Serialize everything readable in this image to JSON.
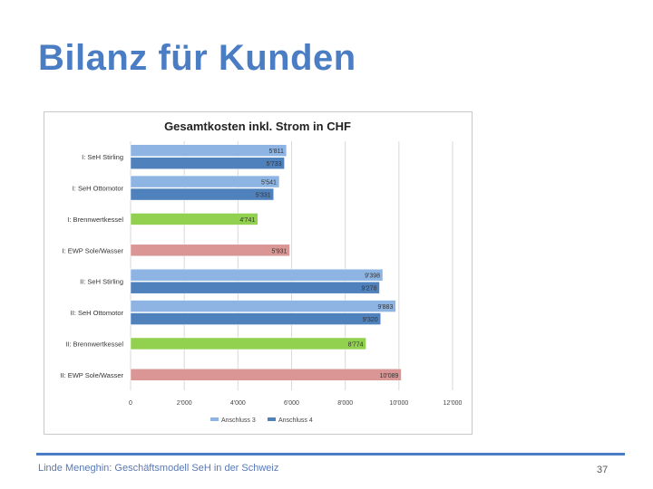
{
  "slide": {
    "title": "Bilanz für Kunden",
    "footer": "Linde Meneghin: Geschäftsmodell SeH in der Schweiz",
    "page_number": "37"
  },
  "colors": {
    "title": "#4a7dc3",
    "anschluss3": "#8eb4e3",
    "anschluss4": "#4f81bd",
    "brennwert": "#92d050",
    "ewp": "#d99694",
    "grid": "#d9d9d9"
  },
  "chart_data": {
    "type": "bar",
    "orientation": "horizontal",
    "title": "Gesamtkosten inkl. Strom in CHF",
    "xlim": [
      0,
      12000
    ],
    "ticks": [
      0,
      2000,
      4000,
      6000,
      8000,
      10000,
      12000
    ],
    "tick_labels": [
      "0",
      "2'000",
      "4'000",
      "6'000",
      "8'000",
      "10'000",
      "12'000"
    ],
    "grid": true,
    "legend_position": "bottom",
    "legend": [
      {
        "name": "Anschluss 3",
        "color": "#8eb4e3"
      },
      {
        "name": "Anschluss 4",
        "color": "#4f81bd"
      }
    ],
    "categories": [
      "I: SeH Stirling",
      "I: SeH Ottomotor",
      "I: Brennwertkessel",
      "I: EWP Sole/Wasser",
      "II: SeH Stirling",
      "II: SeH Ottomotor",
      "II: Brennwertkessel",
      "II: EWP Sole/Wasser"
    ],
    "bars": [
      {
        "category": 0,
        "series": "Anschluss 3",
        "value": 5811,
        "label": "5'811",
        "color": "#8eb4e3",
        "border": "#ffffff"
      },
      {
        "category": 0,
        "series": "Anschluss 4",
        "value": 5733,
        "label": "5'733",
        "color": "#4f81bd",
        "border": "#ffffff"
      },
      {
        "category": 1,
        "series": "Anschluss 3",
        "value": 5541,
        "label": "5'541",
        "color": "#8eb4e3",
        "border": "#ffffff"
      },
      {
        "category": 1,
        "series": "Anschluss 4",
        "value": 5331,
        "label": "5'331",
        "color": "#4f81bd",
        "border": "#ffffff"
      },
      {
        "category": 2,
        "series": "",
        "value": 4741,
        "label": "4'741",
        "color": "#92d050",
        "border": "#ffffff"
      },
      {
        "category": 3,
        "series": "",
        "value": 5931,
        "label": "5'931",
        "color": "#d99694",
        "border": "#ffffff"
      },
      {
        "category": 4,
        "series": "Anschluss 3",
        "value": 9398,
        "label": "9'398",
        "color": "#8eb4e3",
        "border": "#ffffff"
      },
      {
        "category": 4,
        "series": "Anschluss 4",
        "value": 9278,
        "label": "9'278",
        "color": "#4f81bd",
        "border": "#ffffff"
      },
      {
        "category": 5,
        "series": "Anschluss 3",
        "value": 9883,
        "label": "9'883",
        "color": "#8eb4e3",
        "border": "#ffffff"
      },
      {
        "category": 5,
        "series": "Anschluss 4",
        "value": 9320,
        "label": "9'320",
        "color": "#4f81bd",
        "border": "#ffffff"
      },
      {
        "category": 6,
        "series": "",
        "value": 8774,
        "label": "8'774",
        "color": "#92d050",
        "border": "#ffffff"
      },
      {
        "category": 7,
        "series": "",
        "value": 10089,
        "label": "10'089",
        "color": "#d99694",
        "border": "#ffffff"
      }
    ]
  }
}
